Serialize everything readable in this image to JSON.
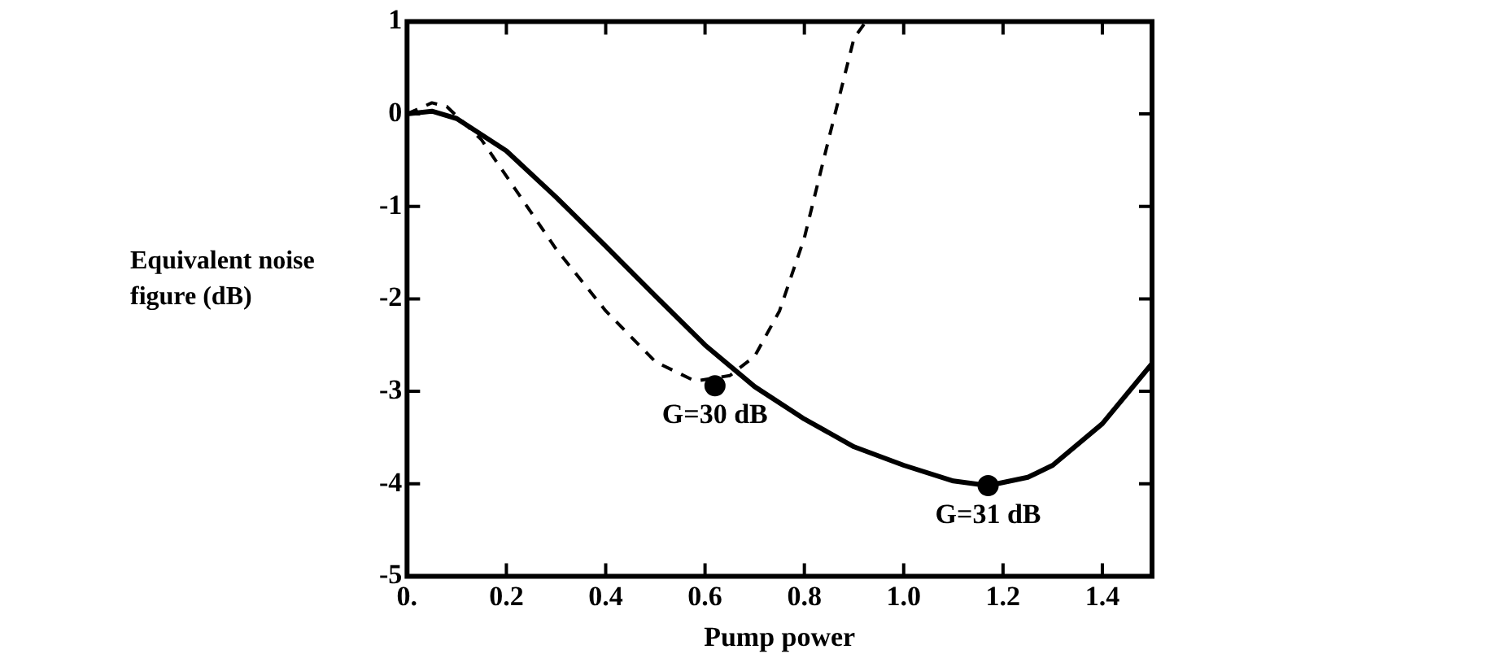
{
  "chart_data": {
    "type": "line",
    "xlabel": "Pump power",
    "ylabel": "Equivalent noise figure (dB)",
    "xlim": [
      0,
      1.5
    ],
    "ylim": [
      -5,
      1
    ],
    "xticks": [
      {
        "value": 0,
        "label": "0."
      },
      0.2,
      0.4,
      0.6,
      0.8,
      {
        "value": 1,
        "label": "1.0"
      },
      1.2,
      1.4
    ],
    "yticks": [
      -5,
      -4,
      -3,
      -2,
      -1,
      0,
      1
    ],
    "grid": false,
    "legend": false,
    "series": [
      {
        "color": "#000000",
        "line_style": "dashed",
        "x": [
          0,
          0.05,
          0.08,
          0.15,
          0.3,
          0.4,
          0.5,
          0.58,
          0.65,
          0.7,
          0.75,
          0.8,
          0.85,
          0.9,
          0.92
        ],
        "values": [
          0,
          0.12,
          0.08,
          -0.28,
          -1.46,
          -2.13,
          -2.68,
          -2.89,
          -2.83,
          -2.62,
          -2.13,
          -1.34,
          -0.25,
          0.82,
          0.97
        ]
      },
      {
        "color": "#000000",
        "line_style": "solid",
        "x": [
          0,
          0.05,
          0.1,
          0.2,
          0.3,
          0.4,
          0.5,
          0.6,
          0.7,
          0.8,
          0.9,
          1.0,
          1.1,
          1.17,
          1.25,
          1.3,
          1.4,
          1.5
        ],
        "values": [
          0,
          0.03,
          -0.05,
          -0.4,
          -0.9,
          -1.43,
          -1.97,
          -2.5,
          -2.95,
          -3.3,
          -3.6,
          -3.8,
          -3.97,
          -4.02,
          -3.93,
          -3.8,
          -3.35,
          -2.7
        ]
      },
      {
        "type": "scatter",
        "color": "#000000",
        "marker": "circle",
        "x": [
          0.62,
          1.17
        ],
        "values": [
          -2.94,
          -4.02
        ]
      }
    ],
    "annotations": [
      {
        "text": "G=30 dB",
        "x": 0.62,
        "y": -2.94
      },
      {
        "text": "G=31 dB",
        "x": 1.17,
        "y": -4.02
      }
    ]
  }
}
